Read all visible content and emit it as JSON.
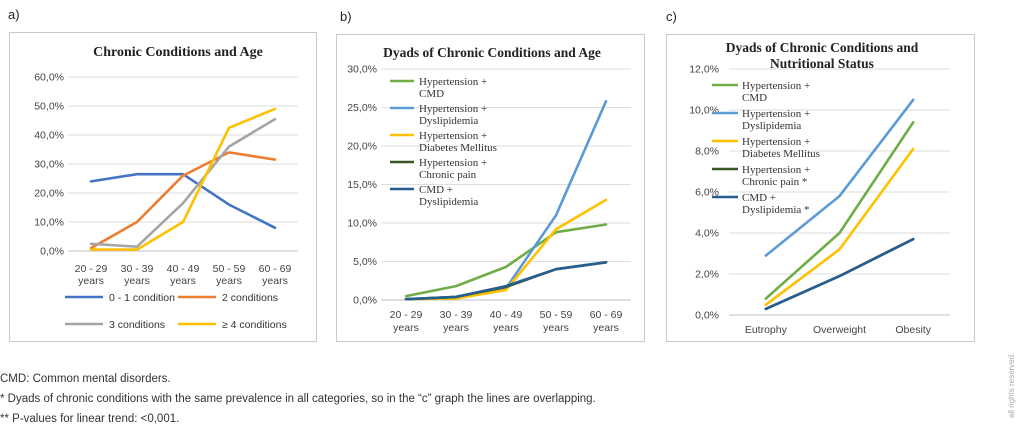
{
  "panels": [
    {
      "letter": "a)"
    },
    {
      "letter": "b)"
    },
    {
      "letter": "c)"
    }
  ],
  "footnotes": {
    "line1": "CMD: Common mental disorders.",
    "line2": "* Dyads of chronic conditions with the same prevalence in all categories, so in the “c” graph the lines are overlapping.",
    "line3": "** P-values for linear trend: <0,001."
  },
  "side_note": "all rights reserved.",
  "chart_data": [
    {
      "type": "line",
      "title": "Chronic Conditions  and Age",
      "categories": [
        [
          "20 - 29",
          "years"
        ],
        [
          "30 - 39",
          "years"
        ],
        [
          "40 - 49",
          "years"
        ],
        [
          "50 - 59",
          "years"
        ],
        [
          "60 - 69",
          "years"
        ]
      ],
      "ylim": [
        0,
        60
      ],
      "yticks": [
        "0,0%",
        "10,0%",
        "20,0%",
        "30,0%",
        "40,0%",
        "50,0%",
        "60,0%"
      ],
      "legend_position": "bottom",
      "series": [
        {
          "name": "0 - 1 condition",
          "color": "#4472c4",
          "values": [
            24,
            26.5,
            26.5,
            16,
            8
          ]
        },
        {
          "name": "2 conditions",
          "color": "#ed7d31",
          "values": [
            1,
            10,
            26,
            34,
            31.5
          ]
        },
        {
          "name": "3 conditions",
          "color": "#a5a5a5",
          "values": [
            2.5,
            1.5,
            16.5,
            36,
            45.5
          ]
        },
        {
          "name": "≥ 4 conditions",
          "color": "#ffc000",
          "values": [
            0.5,
            0.5,
            10,
            42.5,
            49
          ]
        }
      ]
    },
    {
      "type": "line",
      "title": "Dyads of Chronic Conditions  and Age",
      "categories": [
        [
          "20 - 29",
          "years"
        ],
        [
          "30 - 39",
          "years"
        ],
        [
          "40 - 49",
          "years"
        ],
        [
          "50 - 59",
          "years"
        ],
        [
          "60 - 69",
          "years"
        ]
      ],
      "ylim": [
        0,
        30
      ],
      "yticks": [
        "0,0%",
        "5,0%",
        "10,0%",
        "15,0%",
        "20,0%",
        "25,0%",
        "30,0%"
      ],
      "legend_position": "top-left",
      "series": [
        {
          "name": [
            "Hypertension +",
            "CMD"
          ],
          "color": "#70ad47",
          "values": [
            0.5,
            1.8,
            4.3,
            8.8,
            9.8
          ]
        },
        {
          "name": [
            "Hypertension +",
            "Dyslipidemia"
          ],
          "color": "#5b9bd5",
          "values": [
            0.1,
            0.3,
            1.5,
            11,
            25.8
          ]
        },
        {
          "name": [
            "Hypertension +",
            "Diabetes Mellitus"
          ],
          "color": "#ffc000",
          "values": [
            0.1,
            0.2,
            1.3,
            9.2,
            13
          ]
        },
        {
          "name": [
            "Hypertension +",
            "Chronic pain"
          ],
          "color": "#375623",
          "values": [
            0.1,
            0.4,
            1.7,
            4,
            4.9
          ]
        },
        {
          "name": [
            "CMD +",
            "Dyslipidemia"
          ],
          "color": "#255e91",
          "values": [
            0.1,
            0.4,
            1.8,
            4,
            4.9
          ]
        }
      ]
    },
    {
      "type": "line",
      "title": [
        "Dyads of Chronic Conditions  and",
        "Nutritional Status"
      ],
      "categories": [
        [
          "Eutrophy"
        ],
        [
          "Overweight"
        ],
        [
          "Obesity"
        ]
      ],
      "ylim": [
        0,
        12
      ],
      "yticks": [
        "0,0%",
        "2,0%",
        "4,0%",
        "6,0%",
        "8,0%",
        "10,0%",
        "12,0%"
      ],
      "legend_position": "top-left",
      "series": [
        {
          "name": [
            "Hypertension +",
            "CMD"
          ],
          "color": "#70ad47",
          "values": [
            0.8,
            4.0,
            9.4
          ]
        },
        {
          "name": [
            "Hypertension +",
            "Dyslipidemia"
          ],
          "color": "#5b9bd5",
          "values": [
            2.9,
            5.8,
            10.5
          ]
        },
        {
          "name": [
            "Hypertension +",
            "Diabetes Mellitus"
          ],
          "color": "#ffc000",
          "values": [
            0.5,
            3.2,
            8.1
          ]
        },
        {
          "name": [
            "Hypertension +",
            "Chronic pain *"
          ],
          "color": "#375623",
          "values": [
            0.3,
            1.9,
            3.7
          ]
        },
        {
          "name": [
            "CMD +",
            "Dyslipidemia *"
          ],
          "color": "#255e91",
          "values": [
            0.3,
            1.9,
            3.7
          ]
        }
      ]
    }
  ]
}
